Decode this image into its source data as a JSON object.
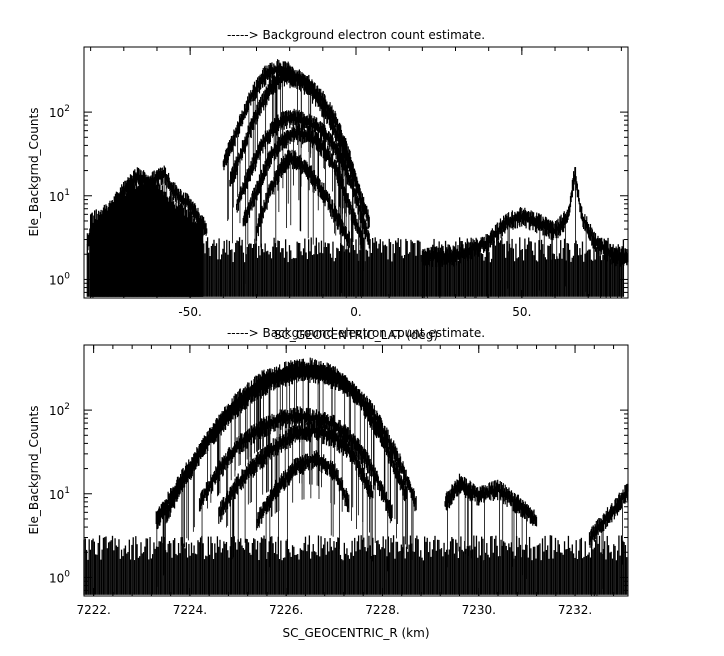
{
  "chart_data": [
    {
      "type": "scatter",
      "title": "-----> Background electron count estimate.",
      "xlabel": "SC_GEOCENTRIC_LAT (deg)",
      "ylabel": "Ele_Backgrnd_Counts",
      "yscale": "log",
      "xlim": [
        -82,
        82
      ],
      "ylim": [
        0.6,
        600
      ],
      "x_ticks": [
        -50,
        0,
        50
      ],
      "x_tick_labels": [
        "-50.",
        "0.",
        "50."
      ],
      "y_ticks": [
        1,
        10,
        100
      ],
      "y_tick_labels": [
        "10^0",
        "10^1",
        "10^2"
      ],
      "grid": false,
      "series": [
        {
          "x": [
            -81,
            -75,
            -70,
            -66,
            -62,
            -58,
            -55,
            -50,
            -45
          ],
          "y": [
            3,
            6,
            12,
            18,
            15,
            20,
            12,
            8,
            4
          ]
        },
        {
          "x": [
            -40,
            -36,
            -32,
            -28,
            -24,
            -20,
            -16,
            -12,
            -8,
            -4,
            0,
            4
          ],
          "y": [
            25,
            60,
            150,
            280,
            350,
            320,
            240,
            160,
            90,
            40,
            15,
            5
          ]
        },
        {
          "x": [
            -38,
            -34,
            -30,
            -26,
            -22,
            -18,
            -14,
            -10,
            -6,
            -2,
            2
          ],
          "y": [
            15,
            40,
            100,
            200,
            280,
            270,
            220,
            150,
            80,
            30,
            8
          ]
        },
        {
          "x": [
            -36,
            -32,
            -28,
            -24,
            -20,
            -16,
            -12,
            -8,
            -4,
            0,
            4
          ],
          "y": [
            8,
            20,
            45,
            75,
            90,
            85,
            70,
            50,
            28,
            10,
            3
          ]
        },
        {
          "x": [
            -34,
            -30,
            -26,
            -22,
            -18,
            -14,
            -10,
            -6,
            -2,
            2
          ],
          "y": [
            5,
            12,
            30,
            50,
            60,
            55,
            40,
            22,
            8,
            3
          ]
        },
        {
          "x": [
            -30,
            -26,
            -22,
            -20,
            -18,
            -14,
            -10,
            -6,
            -2
          ],
          "y": [
            4,
            12,
            25,
            30,
            28,
            20,
            12,
            6,
            3
          ]
        },
        {
          "x": [
            20,
            30,
            40,
            45,
            50,
            55,
            60,
            64,
            66,
            68,
            72,
            78,
            82
          ],
          "y": [
            2,
            2,
            3,
            5,
            6,
            5,
            4,
            6,
            20,
            6,
            3,
            2,
            2
          ]
        }
      ]
    },
    {
      "type": "scatter",
      "title": "-----> Background electron count estimate.",
      "xlabel": "SC_GEOCENTRIC_R (km)",
      "ylabel": "Ele_Backgrnd_Counts",
      "yscale": "log",
      "xlim": [
        7221.8,
        7233.1
      ],
      "ylim": [
        0.6,
        600
      ],
      "x_ticks": [
        7222,
        7224,
        7226,
        7228,
        7230,
        7232
      ],
      "x_tick_labels": [
        "7222.",
        "7224.",
        "7226.",
        "7228.",
        "7230.",
        "7232."
      ],
      "y_ticks": [
        1,
        10,
        100
      ],
      "y_tick_labels": [
        "10^0",
        "10^1",
        "10^2"
      ],
      "grid": false,
      "series": [
        {
          "x": [
            7223.5,
            7224,
            7224.5,
            7225,
            7225.5,
            7226,
            7226.5,
            7227,
            7227.5,
            7228,
            7228.5
          ],
          "y": [
            6,
            20,
            60,
            140,
            240,
            310,
            340,
            280,
            150,
            50,
            10
          ]
        },
        {
          "x": [
            7223.3,
            7223.8,
            7224.3,
            7224.8,
            7225.3,
            7225.8,
            7226.3,
            7226.8,
            7227.3,
            7227.8,
            7228.3,
            7228.7
          ],
          "y": [
            5,
            15,
            40,
            90,
            170,
            250,
            300,
            280,
            200,
            100,
            30,
            8
          ]
        },
        {
          "x": [
            7224.2,
            7224.6,
            7225,
            7225.4,
            7225.8,
            7226.2,
            7226.6,
            7227,
            7227.4,
            7227.8,
            7228.2
          ],
          "y": [
            8,
            20,
            40,
            60,
            80,
            90,
            85,
            70,
            45,
            20,
            6
          ]
        },
        {
          "x": [
            7224.6,
            7225,
            7225.4,
            7225.8,
            7226.2,
            7226.6,
            7227,
            7227.4,
            7227.8
          ],
          "y": [
            6,
            14,
            25,
            40,
            55,
            60,
            50,
            30,
            10
          ]
        },
        {
          "x": [
            7225.4,
            7225.8,
            7226.2,
            7226.6,
            7227,
            7227.3
          ],
          "y": [
            5,
            12,
            22,
            28,
            20,
            8
          ]
        },
        {
          "x": [
            7229.3,
            7229.6,
            7230,
            7230.4,
            7230.8,
            7231.2
          ],
          "y": [
            8,
            14,
            10,
            12,
            8,
            5
          ]
        },
        {
          "x": [
            7232.3,
            7232.6,
            7232.9,
            7233.1
          ],
          "y": [
            3,
            5,
            8,
            12
          ]
        }
      ]
    }
  ]
}
